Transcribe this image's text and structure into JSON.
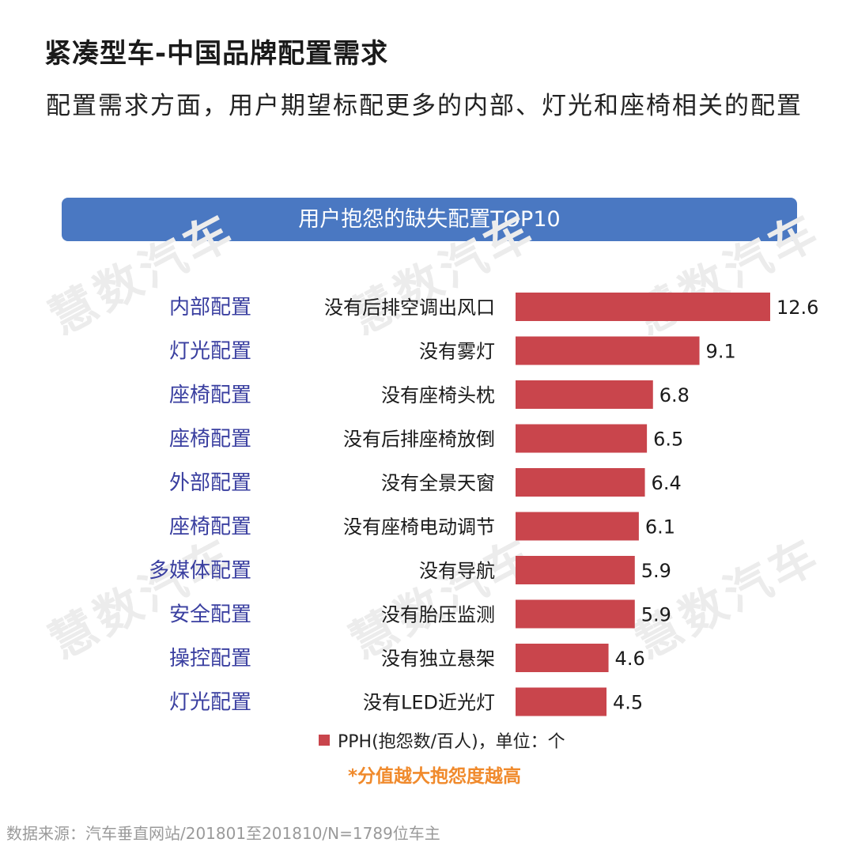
{
  "title": "紧凑型车-中国品牌配置需求",
  "subtitle": "配置需求方面，用户期望标配更多的内部、灯光和座椅相关的配置",
  "banner": "用户抱怨的缺失配置TOP10",
  "watermark": "慧数汽车",
  "legend": "PPH(抱怨数/百人)，单位：个",
  "note": "*分值越大抱怨度越高",
  "source": "数据来源：汽车垂直网站/201801至201810/N=1789位车主",
  "colors": {
    "bar": "#c9454c",
    "category_text": "#3a3fa0",
    "banner": "#4a78c2",
    "note": "#f08a2c"
  },
  "chart_data": {
    "type": "bar",
    "orientation": "horizontal",
    "groups": [
      "内部配置",
      "灯光配置",
      "座椅配置",
      "座椅配置",
      "外部配置",
      "座椅配置",
      "多媒体配置",
      "安全配置",
      "操控配置",
      "灯光配置"
    ],
    "categories": [
      "没有后排空调出风口",
      "没有雾灯",
      "没有座椅头枕",
      "没有后排座椅放倒",
      "没有全景天窗",
      "没有座椅电动调节",
      "没有导航",
      "没有胎压监测",
      "没有独立悬架",
      "没有LED近光灯"
    ],
    "series": [
      {
        "name": "PPH(抱怨数/百人)，单位：个",
        "values": [
          12.6,
          9.1,
          6.8,
          6.5,
          6.4,
          6.1,
          5.9,
          5.9,
          4.6,
          4.5
        ]
      }
    ],
    "xlim": [
      0,
      12.6
    ],
    "grid": false
  }
}
